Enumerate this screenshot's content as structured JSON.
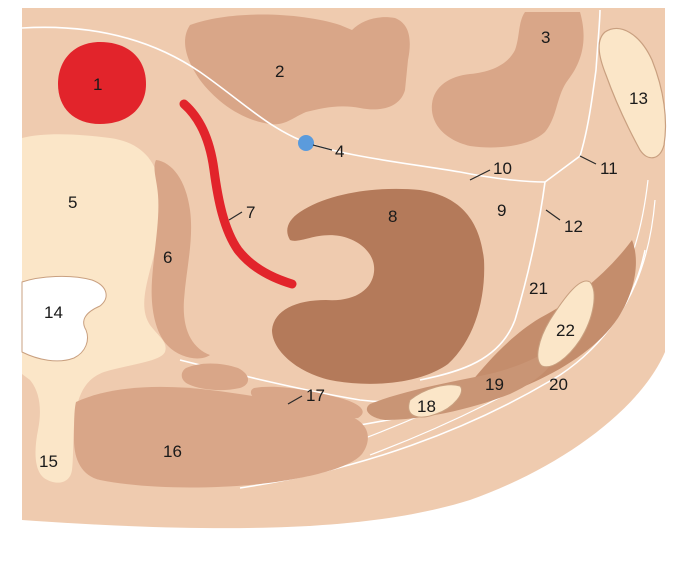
{
  "colors": {
    "background_tissue": "#efcbaf",
    "outer_rim": "#ffffff",
    "muscle_light": "#d9a688",
    "muscle_dark": "#b47a5a",
    "bone": "#fbe6c8",
    "artery": "#e2242b",
    "vessel_blue": "#5b9bdc",
    "fascia_line": "#ffffff",
    "label_text": "#1a1a1a"
  },
  "labels": [
    "1",
    "2",
    "3",
    "4",
    "5",
    "6",
    "7",
    "8",
    "9",
    "10",
    "11",
    "12",
    "13",
    "14",
    "15",
    "16",
    "17",
    "18",
    "19",
    "20",
    "21",
    "22"
  ]
}
